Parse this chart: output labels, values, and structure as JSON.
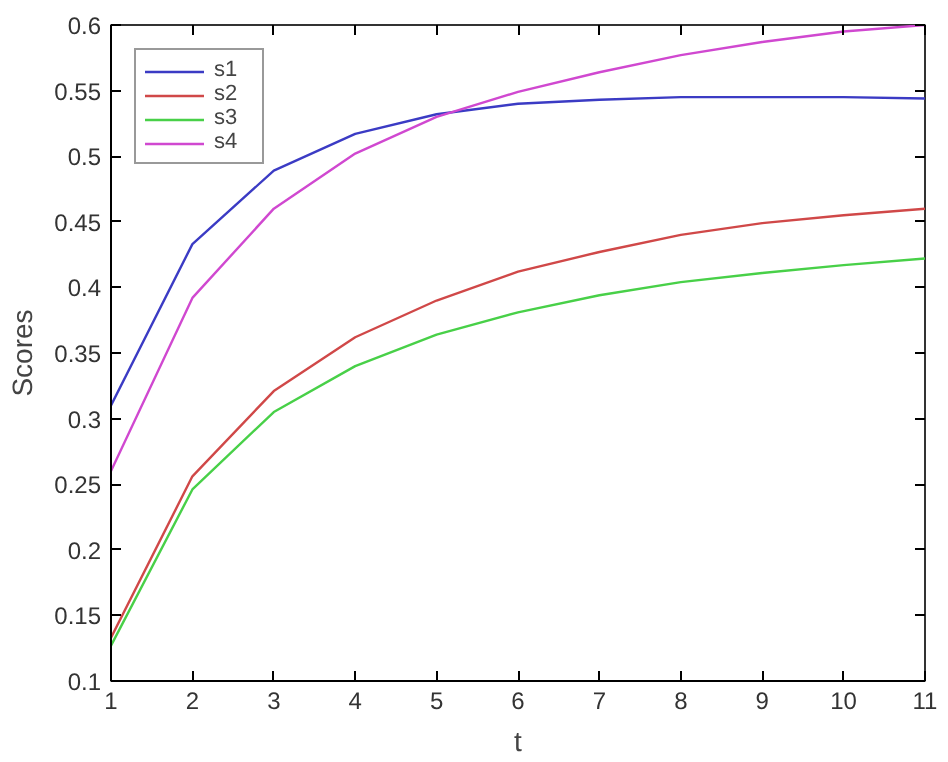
{
  "chart_data": {
    "type": "line",
    "xlabel": "t",
    "ylabel": "Scores",
    "x": [
      1,
      2,
      3,
      4,
      5,
      6,
      7,
      8,
      9,
      10,
      11
    ],
    "xlim": [
      1,
      11
    ],
    "xticks": [
      1,
      2,
      3,
      4,
      5,
      6,
      7,
      8,
      9,
      10,
      11
    ],
    "ylim": [
      0.1,
      0.6
    ],
    "yticks": [
      0.1,
      0.15,
      0.2,
      0.25,
      0.3,
      0.35,
      0.4,
      0.45,
      0.5,
      0.55,
      0.6
    ],
    "legend": "top left",
    "grid": false,
    "marker": "none",
    "line_style": "solid",
    "series": [
      {
        "name": "s1",
        "color": "#3b3bc4",
        "values": [
          0.31,
          0.433,
          0.489,
          0.517,
          0.532,
          0.54,
          0.543,
          0.545,
          0.545,
          0.545,
          0.544
        ]
      },
      {
        "name": "s2",
        "color": "#d04848",
        "values": [
          0.133,
          0.256,
          0.321,
          0.362,
          0.39,
          0.412,
          0.427,
          0.44,
          0.449,
          0.455,
          0.46
        ]
      },
      {
        "name": "s3",
        "color": "#48d048",
        "values": [
          0.127,
          0.246,
          0.305,
          0.34,
          0.364,
          0.381,
          0.394,
          0.404,
          0.411,
          0.417,
          0.422
        ]
      },
      {
        "name": "s4",
        "color": "#d048d0",
        "values": [
          0.26,
          0.392,
          0.46,
          0.502,
          0.53,
          0.549,
          0.564,
          0.577,
          0.587,
          0.595,
          0.6
        ]
      }
    ]
  }
}
